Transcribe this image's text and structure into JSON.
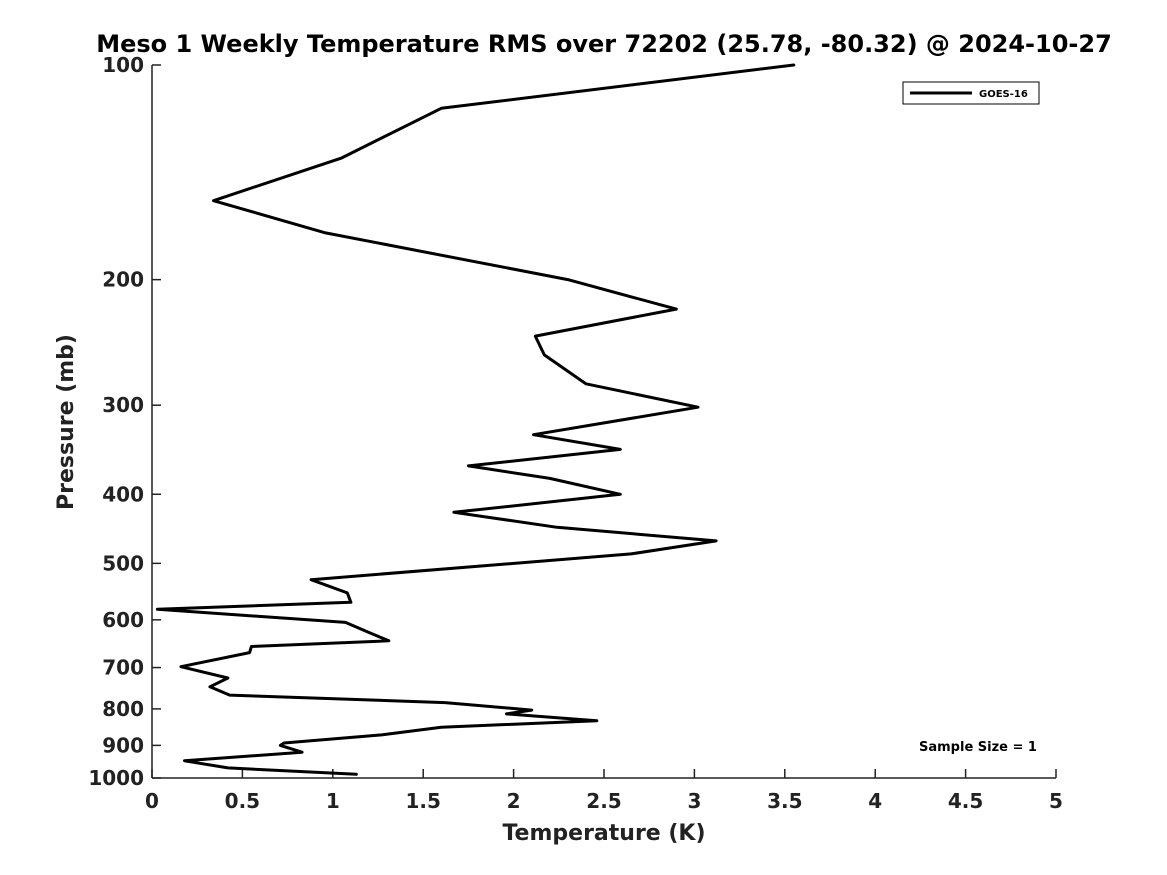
{
  "chart_data": {
    "type": "line",
    "title": "Meso 1 Weekly Temperature RMS over 72202 (25.78, -80.32) @ 2024-10-27",
    "xlabel": "Temperature (K)",
    "ylabel": "Pressure (mb)",
    "xlim": [
      0,
      5
    ],
    "ylim": [
      1000,
      100
    ],
    "yscale": "log",
    "x_ticks": [
      0,
      0.5,
      1,
      1.5,
      2,
      2.5,
      3,
      3.5,
      4,
      4.5,
      5
    ],
    "x_tick_labels": [
      "0",
      "0.5",
      "1",
      "1.5",
      "2",
      "2.5",
      "3",
      "3.5",
      "4",
      "4.5",
      "5"
    ],
    "y_ticks": [
      100,
      200,
      300,
      400,
      500,
      600,
      700,
      800,
      900,
      1000
    ],
    "y_tick_labels": [
      "100",
      "200",
      "300",
      "400",
      "500",
      "600",
      "700",
      "800",
      "900",
      "1000"
    ],
    "grid": false,
    "legend_position": "top-right",
    "series": [
      {
        "name": "GOES-16",
        "color": "#000000",
        "points": [
          [
            3.55,
            100
          ],
          [
            1.6,
            115
          ],
          [
            1.05,
            135
          ],
          [
            0.34,
            155
          ],
          [
            0.96,
            172
          ],
          [
            2.3,
            200
          ],
          [
            2.9,
            220
          ],
          [
            2.12,
            240
          ],
          [
            2.17,
            255
          ],
          [
            2.4,
            280
          ],
          [
            3.02,
            302
          ],
          [
            2.11,
            330
          ],
          [
            2.59,
            346
          ],
          [
            1.75,
            365
          ],
          [
            2.2,
            380
          ],
          [
            2.59,
            400
          ],
          [
            1.67,
            424
          ],
          [
            2.24,
            445
          ],
          [
            3.12,
            465
          ],
          [
            2.65,
            485
          ],
          [
            0.88,
            527
          ],
          [
            1.08,
            550
          ],
          [
            1.1,
            567
          ],
          [
            0.03,
            580
          ],
          [
            1.07,
            605
          ],
          [
            1.2,
            625
          ],
          [
            1.31,
            642
          ],
          [
            0.55,
            654
          ],
          [
            0.54,
            667
          ],
          [
            0.16,
            698
          ],
          [
            0.42,
            724
          ],
          [
            0.32,
            745
          ],
          [
            0.43,
            765
          ],
          [
            1.62,
            784
          ],
          [
            2.1,
            803
          ],
          [
            1.96,
            813
          ],
          [
            2.46,
            831
          ],
          [
            1.6,
            849
          ],
          [
            1.27,
            870
          ],
          [
            0.73,
            893
          ],
          [
            0.71,
            900
          ],
          [
            0.83,
            920
          ],
          [
            0.18,
            946
          ],
          [
            0.42,
            968
          ],
          [
            1.13,
            988
          ]
        ]
      }
    ],
    "annotation": "Sample Size = 1"
  },
  "colors": {
    "line": "#000000",
    "axes": "#222222",
    "background": "#ffffff"
  }
}
